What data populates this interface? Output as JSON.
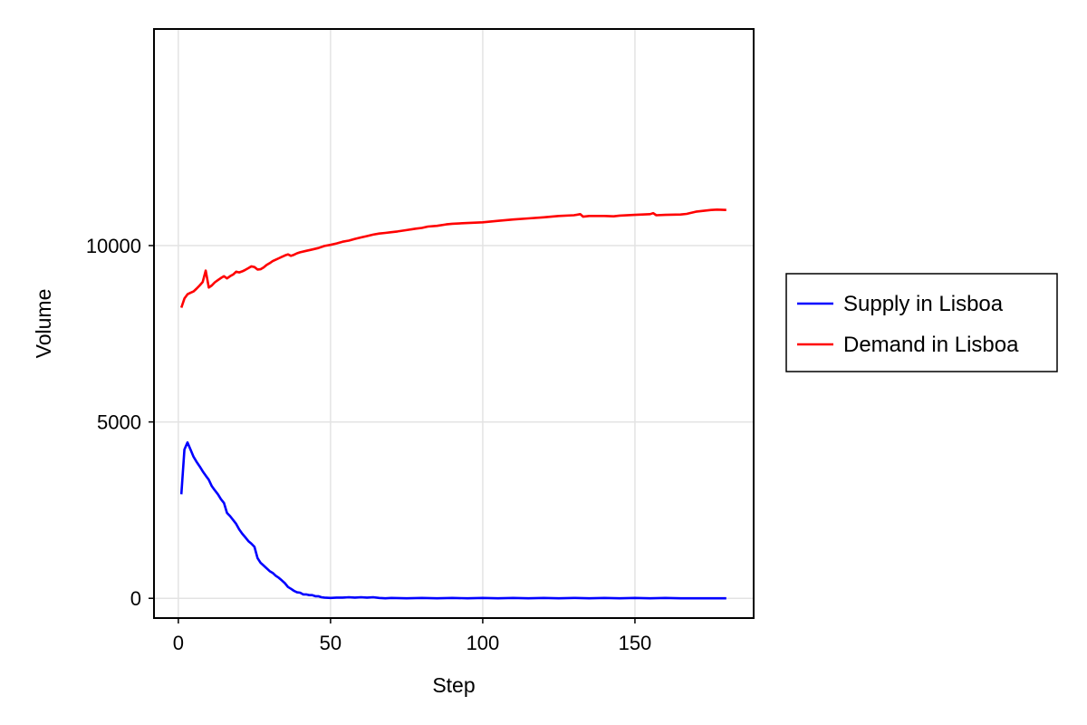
{
  "chart_data": {
    "type": "line",
    "xlabel": "Step",
    "ylabel": "Volume",
    "xlim": [
      -8,
      189
    ],
    "ylim": [
      -560,
      16140
    ],
    "x_ticks": [
      0,
      50,
      100,
      150
    ],
    "y_ticks": [
      0,
      5000,
      10000
    ],
    "x_tick_labels": [
      "0",
      "50",
      "100",
      "150"
    ],
    "y_tick_labels": [
      "0",
      "5000",
      "10000"
    ],
    "grid": true,
    "legend_position": "right",
    "series": [
      {
        "name": "Supply in Lisboa",
        "color": "#0000ff",
        "points": [
          [
            1,
            2950
          ],
          [
            2,
            4220
          ],
          [
            3,
            4420
          ],
          [
            4,
            4220
          ],
          [
            5,
            4010
          ],
          [
            6,
            3870
          ],
          [
            7,
            3740
          ],
          [
            8,
            3600
          ],
          [
            9,
            3480
          ],
          [
            10,
            3360
          ],
          [
            11,
            3180
          ],
          [
            12,
            3060
          ],
          [
            13,
            2950
          ],
          [
            14,
            2810
          ],
          [
            15,
            2700
          ],
          [
            16,
            2420
          ],
          [
            17,
            2330
          ],
          [
            18,
            2220
          ],
          [
            19,
            2110
          ],
          [
            20,
            1950
          ],
          [
            21,
            1830
          ],
          [
            22,
            1730
          ],
          [
            23,
            1620
          ],
          [
            24,
            1550
          ],
          [
            25,
            1460
          ],
          [
            26,
            1140
          ],
          [
            27,
            1010
          ],
          [
            28,
            930
          ],
          [
            29,
            850
          ],
          [
            30,
            770
          ],
          [
            31,
            720
          ],
          [
            32,
            640
          ],
          [
            33,
            580
          ],
          [
            34,
            510
          ],
          [
            35,
            430
          ],
          [
            36,
            320
          ],
          [
            37,
            270
          ],
          [
            38,
            210
          ],
          [
            39,
            170
          ],
          [
            40,
            160
          ],
          [
            41,
            110
          ],
          [
            42,
            110
          ],
          [
            43,
            90
          ],
          [
            44,
            90
          ],
          [
            45,
            60
          ],
          [
            46,
            60
          ],
          [
            47,
            30
          ],
          [
            48,
            20
          ],
          [
            50,
            10
          ],
          [
            52,
            20
          ],
          [
            54,
            20
          ],
          [
            56,
            30
          ],
          [
            58,
            20
          ],
          [
            60,
            30
          ],
          [
            62,
            20
          ],
          [
            64,
            30
          ],
          [
            66,
            10
          ],
          [
            68,
            0
          ],
          [
            70,
            10
          ],
          [
            75,
            0
          ],
          [
            80,
            10
          ],
          [
            85,
            0
          ],
          [
            90,
            10
          ],
          [
            95,
            0
          ],
          [
            100,
            10
          ],
          [
            105,
            0
          ],
          [
            110,
            10
          ],
          [
            115,
            0
          ],
          [
            120,
            10
          ],
          [
            125,
            0
          ],
          [
            130,
            10
          ],
          [
            135,
            0
          ],
          [
            140,
            10
          ],
          [
            145,
            0
          ],
          [
            150,
            10
          ],
          [
            155,
            0
          ],
          [
            160,
            10
          ],
          [
            165,
            0
          ],
          [
            170,
            0
          ],
          [
            175,
            0
          ],
          [
            180,
            0
          ]
        ]
      },
      {
        "name": "Demand in Lisboa",
        "color": "#ff0000",
        "points": [
          [
            1,
            8240
          ],
          [
            2,
            8500
          ],
          [
            3,
            8620
          ],
          [
            4,
            8660
          ],
          [
            5,
            8700
          ],
          [
            6,
            8780
          ],
          [
            7,
            8870
          ],
          [
            8,
            8970
          ],
          [
            9,
            9290
          ],
          [
            10,
            8810
          ],
          [
            11,
            8870
          ],
          [
            12,
            8960
          ],
          [
            13,
            9020
          ],
          [
            14,
            9080
          ],
          [
            15,
            9130
          ],
          [
            16,
            9070
          ],
          [
            17,
            9130
          ],
          [
            18,
            9180
          ],
          [
            19,
            9260
          ],
          [
            20,
            9240
          ],
          [
            21,
            9270
          ],
          [
            22,
            9310
          ],
          [
            23,
            9360
          ],
          [
            24,
            9410
          ],
          [
            25,
            9390
          ],
          [
            26,
            9320
          ],
          [
            27,
            9330
          ],
          [
            28,
            9380
          ],
          [
            29,
            9450
          ],
          [
            30,
            9500
          ],
          [
            31,
            9560
          ],
          [
            32,
            9600
          ],
          [
            33,
            9640
          ],
          [
            34,
            9680
          ],
          [
            35,
            9720
          ],
          [
            36,
            9750
          ],
          [
            37,
            9710
          ],
          [
            38,
            9740
          ],
          [
            39,
            9780
          ],
          [
            40,
            9810
          ],
          [
            42,
            9850
          ],
          [
            44,
            9890
          ],
          [
            46,
            9930
          ],
          [
            48,
            9990
          ],
          [
            50,
            10020
          ],
          [
            52,
            10060
          ],
          [
            54,
            10110
          ],
          [
            56,
            10140
          ],
          [
            58,
            10190
          ],
          [
            60,
            10230
          ],
          [
            62,
            10270
          ],
          [
            64,
            10310
          ],
          [
            66,
            10340
          ],
          [
            68,
            10360
          ],
          [
            70,
            10380
          ],
          [
            72,
            10400
          ],
          [
            75,
            10440
          ],
          [
            78,
            10480
          ],
          [
            80,
            10500
          ],
          [
            82,
            10540
          ],
          [
            85,
            10560
          ],
          [
            88,
            10600
          ],
          [
            90,
            10620
          ],
          [
            95,
            10640
          ],
          [
            100,
            10660
          ],
          [
            105,
            10700
          ],
          [
            110,
            10740
          ],
          [
            115,
            10770
          ],
          [
            120,
            10800
          ],
          [
            125,
            10840
          ],
          [
            130,
            10860
          ],
          [
            132,
            10890
          ],
          [
            133,
            10820
          ],
          [
            135,
            10840
          ],
          [
            140,
            10840
          ],
          [
            143,
            10830
          ],
          [
            145,
            10850
          ],
          [
            150,
            10870
          ],
          [
            155,
            10890
          ],
          [
            156,
            10920
          ],
          [
            157,
            10860
          ],
          [
            160,
            10870
          ],
          [
            165,
            10880
          ],
          [
            167,
            10900
          ],
          [
            170,
            10960
          ],
          [
            175,
            11010
          ],
          [
            177,
            11020
          ],
          [
            180,
            11010
          ]
        ]
      }
    ]
  }
}
